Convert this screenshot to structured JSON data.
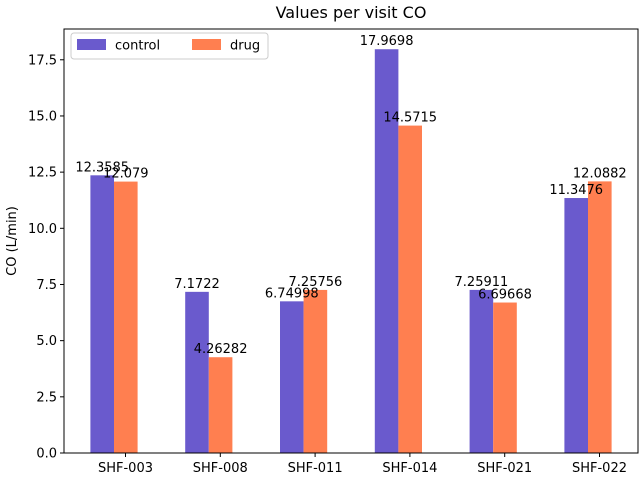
{
  "chart_data": {
    "type": "bar",
    "title": "Values per visit CO",
    "xlabel": "",
    "ylabel": "CO (L/min)",
    "categories": [
      "SHF-003",
      "SHF-008",
      "SHF-011",
      "SHF-014",
      "SHF-021",
      "SHF-022"
    ],
    "series": [
      {
        "name": "control",
        "color": "#6a5acd",
        "values": [
          12.3585,
          7.1722,
          6.74998,
          17.9698,
          7.25911,
          11.3476
        ],
        "labels": [
          "12.3585",
          "7.1722",
          "6.74998",
          "17.9698",
          "7.25911",
          "11.3476"
        ]
      },
      {
        "name": "drug",
        "color": "#ff7f50",
        "values": [
          12.079,
          4.26282,
          7.25756,
          14.5715,
          6.69668,
          12.0882
        ],
        "labels": [
          "12.079",
          "4.26282",
          "7.25756",
          "14.5715",
          "6.69668",
          "12.0882"
        ]
      }
    ],
    "ylim": [
      0,
      18.87
    ],
    "yticks": [
      0.0,
      2.5,
      5.0,
      7.5,
      10.0,
      12.5,
      15.0,
      17.5
    ],
    "ytick_labels": [
      "0.0",
      "2.5",
      "5.0",
      "7.5",
      "10.0",
      "12.5",
      "15.0",
      "17.5"
    ],
    "grid": false,
    "legend_position": "top-left",
    "legend_columns": 2
  }
}
